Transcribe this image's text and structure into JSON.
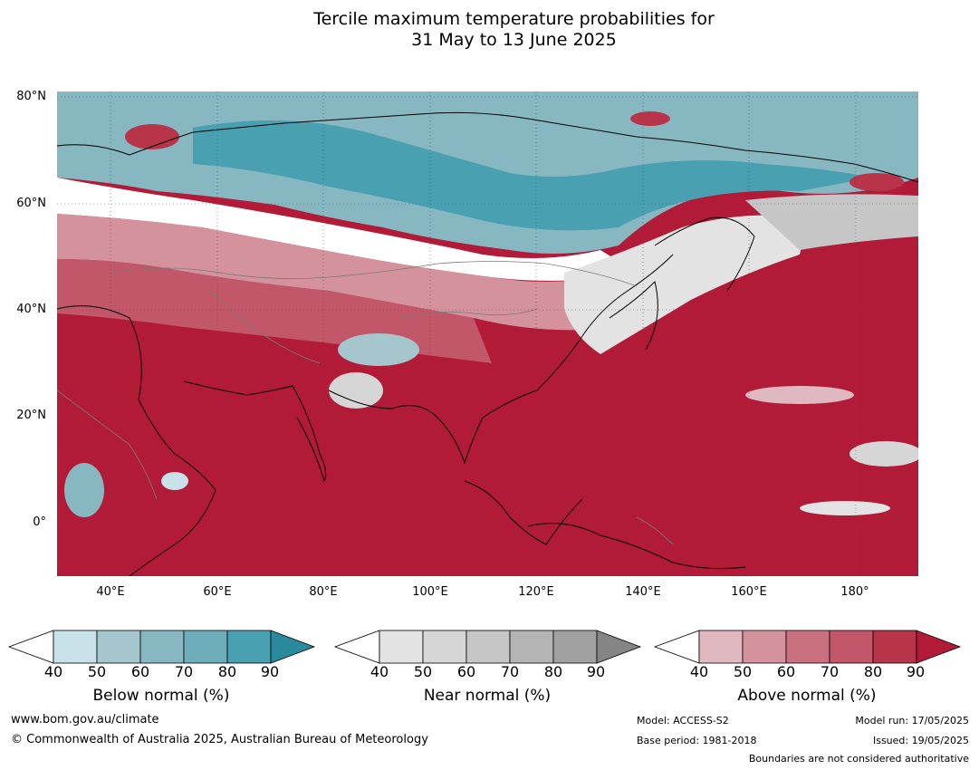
{
  "title_line1": "Tercile maximum temperature probabilities for",
  "title_line2": "31 May to 13 June 2025",
  "lat_labels": [
    "80°N",
    "60°N",
    "40°N",
    "20°N",
    "0°"
  ],
  "lon_labels": [
    "40°E",
    "60°E",
    "80°E",
    "100°E",
    "120°E",
    "140°E",
    "160°E",
    "180°"
  ],
  "colorbars": [
    {
      "title": "Below normal (%)",
      "ticks": [
        "40",
        "50",
        "60",
        "70",
        "80",
        "90"
      ],
      "colors": [
        "#ffffff",
        "#c9e1e8",
        "#a6c6cd",
        "#87b8c2",
        "#6eaebb",
        "#48a0b1",
        "#2a8a9d"
      ]
    },
    {
      "title": "Near normal (%)",
      "ticks": [
        "40",
        "50",
        "60",
        "70",
        "80",
        "90"
      ],
      "colors": [
        "#ffffff",
        "#e3e3e3",
        "#d6d6d6",
        "#c6c6c6",
        "#b4b4b4",
        "#a1a1a1",
        "#858585"
      ]
    },
    {
      "title": "Above normal (%)",
      "ticks": [
        "40",
        "50",
        "60",
        "70",
        "80",
        "90"
      ],
      "colors": [
        "#ffffff",
        "#e0b8bf",
        "#d4939c",
        "#c9717e",
        "#c15769",
        "#b83449",
        "#b11b37"
      ]
    }
  ],
  "footer": {
    "website": "www.bom.gov.au/climate",
    "copyright": "© Commonwealth of Australia 2025, Australian Bureau of Meteorology",
    "model": "Model: ACCESS-S2",
    "base_period": "Base period: 1981-2018",
    "model_run": "Model run: 17/05/2025",
    "issued": "Issued: 19/05/2025",
    "disclaimer": "Boundaries are not considered authoritative"
  }
}
